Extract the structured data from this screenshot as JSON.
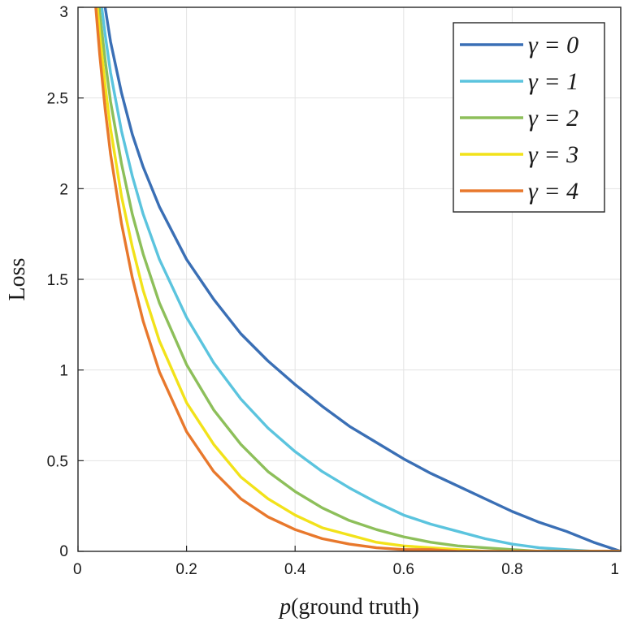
{
  "chart_data": {
    "type": "line",
    "title": "",
    "xlabel_prefix": "p",
    "xlabel_suffix": "(ground truth)",
    "ylabel": "Loss",
    "xlim": [
      0,
      1
    ],
    "ylim": [
      0,
      3
    ],
    "x_ticks": [
      0,
      0.2,
      0.4,
      0.6,
      0.8,
      1
    ],
    "x_tick_labels": [
      "0",
      "0.2",
      "0.4",
      "0.6",
      "0.8",
      "1"
    ],
    "y_ticks": [
      0,
      0.5,
      1,
      1.5,
      2,
      2.5,
      3
    ],
    "y_tick_labels": [
      "0",
      "0.5",
      "1",
      "1.5",
      "2",
      "2.5",
      "3"
    ],
    "grid": true,
    "legend_position": "top-right",
    "x": [
      0.03,
      0.04,
      0.05,
      0.06,
      0.08,
      0.1,
      0.12,
      0.15,
      0.2,
      0.25,
      0.3,
      0.35,
      0.4,
      0.45,
      0.5,
      0.55,
      0.6,
      0.65,
      0.7,
      0.75,
      0.8,
      0.85,
      0.9,
      0.95,
      1.0
    ],
    "series": [
      {
        "name": "γ = 0",
        "gamma": 0,
        "color": "#3a6fb5",
        "values": [
          3.51,
          3.22,
          3.0,
          2.81,
          2.53,
          2.3,
          2.12,
          1.9,
          1.61,
          1.39,
          1.2,
          1.05,
          0.92,
          0.8,
          0.69,
          0.6,
          0.51,
          0.43,
          0.36,
          0.29,
          0.22,
          0.16,
          0.11,
          0.05,
          0.0
        ]
      },
      {
        "name": "γ = 1",
        "gamma": 1,
        "color": "#5bc4de",
        "values": [
          3.4,
          3.09,
          2.85,
          2.64,
          2.32,
          2.07,
          1.86,
          1.61,
          1.29,
          1.04,
          0.84,
          0.68,
          0.55,
          0.44,
          0.35,
          0.27,
          0.2,
          0.15,
          0.11,
          0.07,
          0.04,
          0.02,
          0.01,
          0.0,
          0.0
        ]
      },
      {
        "name": "γ = 2",
        "gamma": 2,
        "color": "#8dbf5a",
        "values": [
          3.3,
          2.97,
          2.71,
          2.48,
          2.14,
          1.86,
          1.64,
          1.37,
          1.03,
          0.78,
          0.59,
          0.44,
          0.33,
          0.24,
          0.17,
          0.12,
          0.08,
          0.05,
          0.03,
          0.02,
          0.01,
          0.0,
          0.0,
          0.0,
          0.0
        ]
      },
      {
        "name": "γ = 3",
        "gamma": 3,
        "color": "#f2e21a",
        "values": [
          3.2,
          2.85,
          2.57,
          2.33,
          1.96,
          1.68,
          1.44,
          1.16,
          0.82,
          0.59,
          0.41,
          0.29,
          0.2,
          0.13,
          0.09,
          0.05,
          0.03,
          0.02,
          0.01,
          0.0,
          0.0,
          0.0,
          0.0,
          0.0,
          0.0
        ]
      },
      {
        "name": "γ = 4",
        "gamma": 4,
        "color": "#e8782c",
        "values": [
          3.1,
          2.74,
          2.44,
          2.19,
          1.81,
          1.51,
          1.27,
          0.99,
          0.66,
          0.44,
          0.29,
          0.19,
          0.12,
          0.07,
          0.04,
          0.02,
          0.01,
          0.01,
          0.0,
          0.0,
          0.0,
          0.0,
          0.0,
          0.0,
          0.0
        ]
      }
    ]
  }
}
